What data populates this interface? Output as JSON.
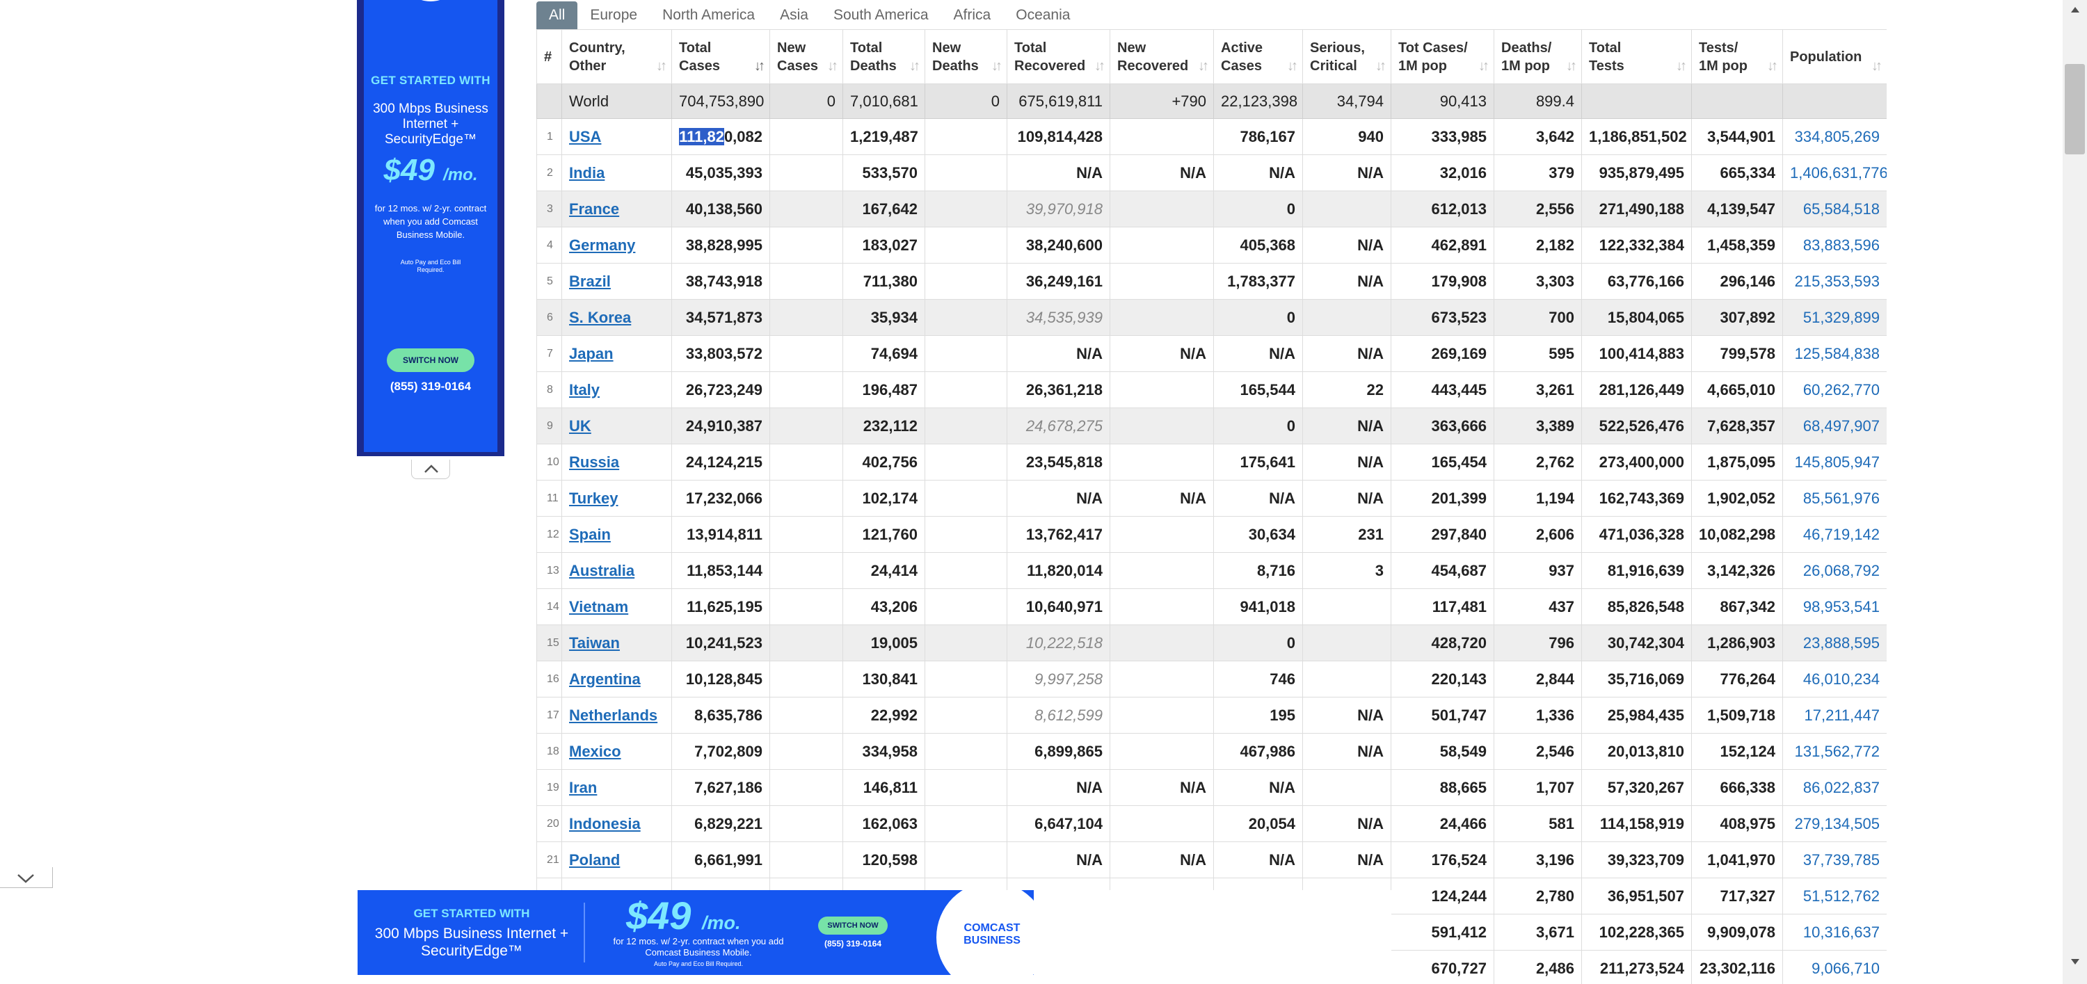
{
  "side_ad": {
    "get_started": "GET STARTED WITH",
    "speed": "300 Mbps Business Internet + SecurityEdge™",
    "price": "$49",
    "price_unit": "/mo.",
    "terms": "for 12 mos. w/ 2-yr. contract when you add Comcast Business Mobile.",
    "fine_print": "Auto Pay and Eco Bill Required.",
    "button": "SWITCH NOW",
    "phone": "(855) 319-0164"
  },
  "tabs": [
    "All",
    "Europe",
    "North America",
    "Asia",
    "South America",
    "Africa",
    "Oceania"
  ],
  "headers": [
    {
      "line1": "#",
      "line2": ""
    },
    {
      "line1": "Country,",
      "line2": "Other"
    },
    {
      "line1": "Total",
      "line2": "Cases"
    },
    {
      "line1": "New",
      "line2": "Cases"
    },
    {
      "line1": "Total",
      "line2": "Deaths"
    },
    {
      "line1": "New",
      "line2": "Deaths"
    },
    {
      "line1": "Total",
      "line2": "Recovered"
    },
    {
      "line1": "New",
      "line2": "Recovered"
    },
    {
      "line1": "Active",
      "line2": "Cases"
    },
    {
      "line1": "Serious,",
      "line2": "Critical"
    },
    {
      "line1": "Tot Cases/",
      "line2": "1M pop"
    },
    {
      "line1": "Deaths/",
      "line2": "1M pop"
    },
    {
      "line1": "Total",
      "line2": "Tests"
    },
    {
      "line1": "Tests/",
      "line2": "1M pop"
    },
    {
      "line1": "Population",
      "line2": ""
    }
  ],
  "world_row": {
    "country": "World",
    "total_cases": "704,753,890",
    "new_cases": "0",
    "total_deaths": "7,010,681",
    "new_deaths": "0",
    "total_recovered": "675,619,811",
    "new_recovered": "+790",
    "active_cases": "22,123,398",
    "serious": "34,794",
    "cases_per_1m": "90,413",
    "deaths_per_1m": "899.4",
    "total_tests": "",
    "tests_per_1m": "",
    "population": ""
  },
  "rows": [
    {
      "n": "1",
      "country": "USA",
      "total_cases": "111,820,082",
      "new_cases": "",
      "total_deaths": "1,219,487",
      "new_deaths": "",
      "total_recovered": "109,814,428",
      "new_recovered": "",
      "active_cases": "786,167",
      "serious": "940",
      "cases_per_1m": "333,985",
      "deaths_per_1m": "3,642",
      "total_tests": "1,186,851,502",
      "tests_per_1m": "3,544,901",
      "population": "334,805,269"
    },
    {
      "n": "2",
      "country": "India",
      "total_cases": "45,035,393",
      "new_cases": "",
      "total_deaths": "533,570",
      "new_deaths": "",
      "total_recovered": "N/A",
      "new_recovered": "N/A",
      "active_cases": "N/A",
      "serious": "N/A",
      "cases_per_1m": "32,016",
      "deaths_per_1m": "379",
      "total_tests": "935,879,495",
      "tests_per_1m": "665,334",
      "population": "1,406,631,776"
    },
    {
      "n": "3",
      "country": "France",
      "total_cases": "40,138,560",
      "new_cases": "",
      "total_deaths": "167,642",
      "new_deaths": "",
      "total_recovered": "39,970,918",
      "new_recovered": "",
      "active_cases": "0",
      "serious": "",
      "cases_per_1m": "612,013",
      "deaths_per_1m": "2,556",
      "total_tests": "271,490,188",
      "tests_per_1m": "4,139,547",
      "population": "65,584,518"
    },
    {
      "n": "4",
      "country": "Germany",
      "total_cases": "38,828,995",
      "new_cases": "",
      "total_deaths": "183,027",
      "new_deaths": "",
      "total_recovered": "38,240,600",
      "new_recovered": "",
      "active_cases": "405,368",
      "serious": "N/A",
      "cases_per_1m": "462,891",
      "deaths_per_1m": "2,182",
      "total_tests": "122,332,384",
      "tests_per_1m": "1,458,359",
      "population": "83,883,596"
    },
    {
      "n": "5",
      "country": "Brazil",
      "total_cases": "38,743,918",
      "new_cases": "",
      "total_deaths": "711,380",
      "new_deaths": "",
      "total_recovered": "36,249,161",
      "new_recovered": "",
      "active_cases": "1,783,377",
      "serious": "N/A",
      "cases_per_1m": "179,908",
      "deaths_per_1m": "3,303",
      "total_tests": "63,776,166",
      "tests_per_1m": "296,146",
      "population": "215,353,593"
    },
    {
      "n": "6",
      "country": "S. Korea",
      "total_cases": "34,571,873",
      "new_cases": "",
      "total_deaths": "35,934",
      "new_deaths": "",
      "total_recovered": "34,535,939",
      "new_recovered": "",
      "active_cases": "0",
      "serious": "",
      "cases_per_1m": "673,523",
      "deaths_per_1m": "700",
      "total_tests": "15,804,065",
      "tests_per_1m": "307,892",
      "population": "51,329,899"
    },
    {
      "n": "7",
      "country": "Japan",
      "total_cases": "33,803,572",
      "new_cases": "",
      "total_deaths": "74,694",
      "new_deaths": "",
      "total_recovered": "N/A",
      "new_recovered": "N/A",
      "active_cases": "N/A",
      "serious": "N/A",
      "cases_per_1m": "269,169",
      "deaths_per_1m": "595",
      "total_tests": "100,414,883",
      "tests_per_1m": "799,578",
      "population": "125,584,838"
    },
    {
      "n": "8",
      "country": "Italy",
      "total_cases": "26,723,249",
      "new_cases": "",
      "total_deaths": "196,487",
      "new_deaths": "",
      "total_recovered": "26,361,218",
      "new_recovered": "",
      "active_cases": "165,544",
      "serious": "22",
      "cases_per_1m": "443,445",
      "deaths_per_1m": "3,261",
      "total_tests": "281,126,449",
      "tests_per_1m": "4,665,010",
      "population": "60,262,770"
    },
    {
      "n": "9",
      "country": "UK",
      "total_cases": "24,910,387",
      "new_cases": "",
      "total_deaths": "232,112",
      "new_deaths": "",
      "total_recovered": "24,678,275",
      "new_recovered": "",
      "active_cases": "0",
      "serious": "N/A",
      "cases_per_1m": "363,666",
      "deaths_per_1m": "3,389",
      "total_tests": "522,526,476",
      "tests_per_1m": "7,628,357",
      "population": "68,497,907"
    },
    {
      "n": "10",
      "country": "Russia",
      "total_cases": "24,124,215",
      "new_cases": "",
      "total_deaths": "402,756",
      "new_deaths": "",
      "total_recovered": "23,545,818",
      "new_recovered": "",
      "active_cases": "175,641",
      "serious": "N/A",
      "cases_per_1m": "165,454",
      "deaths_per_1m": "2,762",
      "total_tests": "273,400,000",
      "tests_per_1m": "1,875,095",
      "population": "145,805,947"
    },
    {
      "n": "11",
      "country": "Turkey",
      "total_cases": "17,232,066",
      "new_cases": "",
      "total_deaths": "102,174",
      "new_deaths": "",
      "total_recovered": "N/A",
      "new_recovered": "N/A",
      "active_cases": "N/A",
      "serious": "N/A",
      "cases_per_1m": "201,399",
      "deaths_per_1m": "1,194",
      "total_tests": "162,743,369",
      "tests_per_1m": "1,902,052",
      "population": "85,561,976"
    },
    {
      "n": "12",
      "country": "Spain",
      "total_cases": "13,914,811",
      "new_cases": "",
      "total_deaths": "121,760",
      "new_deaths": "",
      "total_recovered": "13,762,417",
      "new_recovered": "",
      "active_cases": "30,634",
      "serious": "231",
      "cases_per_1m": "297,840",
      "deaths_per_1m": "2,606",
      "total_tests": "471,036,328",
      "tests_per_1m": "10,082,298",
      "population": "46,719,142"
    },
    {
      "n": "13",
      "country": "Australia",
      "total_cases": "11,853,144",
      "new_cases": "",
      "total_deaths": "24,414",
      "new_deaths": "",
      "total_recovered": "11,820,014",
      "new_recovered": "",
      "active_cases": "8,716",
      "serious": "3",
      "cases_per_1m": "454,687",
      "deaths_per_1m": "937",
      "total_tests": "81,916,639",
      "tests_per_1m": "3,142,326",
      "population": "26,068,792"
    },
    {
      "n": "14",
      "country": "Vietnam",
      "total_cases": "11,625,195",
      "new_cases": "",
      "total_deaths": "43,206",
      "new_deaths": "",
      "total_recovered": "10,640,971",
      "new_recovered": "",
      "active_cases": "941,018",
      "serious": "",
      "cases_per_1m": "117,481",
      "deaths_per_1m": "437",
      "total_tests": "85,826,548",
      "tests_per_1m": "867,342",
      "population": "98,953,541"
    },
    {
      "n": "15",
      "country": "Taiwan",
      "total_cases": "10,241,523",
      "new_cases": "",
      "total_deaths": "19,005",
      "new_deaths": "",
      "total_recovered": "10,222,518",
      "new_recovered": "",
      "active_cases": "0",
      "serious": "",
      "cases_per_1m": "428,720",
      "deaths_per_1m": "796",
      "total_tests": "30,742,304",
      "tests_per_1m": "1,286,903",
      "population": "23,888,595"
    },
    {
      "n": "16",
      "country": "Argentina",
      "total_cases": "10,128,845",
      "new_cases": "",
      "total_deaths": "130,841",
      "new_deaths": "",
      "total_recovered": "9,997,258",
      "new_recovered": "",
      "active_cases": "746",
      "serious": "",
      "cases_per_1m": "220,143",
      "deaths_per_1m": "2,844",
      "total_tests": "35,716,069",
      "tests_per_1m": "776,264",
      "population": "46,010,234"
    },
    {
      "n": "17",
      "country": "Netherlands",
      "total_cases": "8,635,786",
      "new_cases": "",
      "total_deaths": "22,992",
      "new_deaths": "",
      "total_recovered": "8,612,599",
      "new_recovered": "",
      "active_cases": "195",
      "serious": "N/A",
      "cases_per_1m": "501,747",
      "deaths_per_1m": "1,336",
      "total_tests": "25,984,435",
      "tests_per_1m": "1,509,718",
      "population": "17,211,447"
    },
    {
      "n": "18",
      "country": "Mexico",
      "total_cases": "7,702,809",
      "new_cases": "",
      "total_deaths": "334,958",
      "new_deaths": "",
      "total_recovered": "6,899,865",
      "new_recovered": "",
      "active_cases": "467,986",
      "serious": "N/A",
      "cases_per_1m": "58,549",
      "deaths_per_1m": "2,546",
      "total_tests": "20,013,810",
      "tests_per_1m": "152,124",
      "population": "131,562,772"
    },
    {
      "n": "19",
      "country": "Iran",
      "total_cases": "7,627,186",
      "new_cases": "",
      "total_deaths": "146,811",
      "new_deaths": "",
      "total_recovered": "N/A",
      "new_recovered": "N/A",
      "active_cases": "N/A",
      "serious": "",
      "cases_per_1m": "88,665",
      "deaths_per_1m": "1,707",
      "total_tests": "57,320,267",
      "tests_per_1m": "666,338",
      "population": "86,022,837"
    },
    {
      "n": "20",
      "country": "Indonesia",
      "total_cases": "6,829,221",
      "new_cases": "",
      "total_deaths": "162,063",
      "new_deaths": "",
      "total_recovered": "6,647,104",
      "new_recovered": "",
      "active_cases": "20,054",
      "serious": "N/A",
      "cases_per_1m": "24,466",
      "deaths_per_1m": "581",
      "total_tests": "114,158,919",
      "tests_per_1m": "408,975",
      "population": "279,134,505"
    },
    {
      "n": "21",
      "country": "Poland",
      "total_cases": "6,661,991",
      "new_cases": "",
      "total_deaths": "120,598",
      "new_deaths": "",
      "total_recovered": "N/A",
      "new_recovered": "N/A",
      "active_cases": "N/A",
      "serious": "N/A",
      "cases_per_1m": "176,524",
      "deaths_per_1m": "3,196",
      "total_tests": "39,323,709",
      "tests_per_1m": "1,041,970",
      "population": "37,739,785"
    },
    {
      "n": "",
      "country": "",
      "total_cases": "",
      "new_cases": "",
      "total_deaths": "",
      "new_deaths": "",
      "total_recovered": "",
      "new_recovered": "",
      "active_cases": "",
      "serious": "",
      "cases_per_1m": "124,244",
      "deaths_per_1m": "2,780",
      "total_tests": "36,951,507",
      "tests_per_1m": "717,327",
      "population": "51,512,762"
    },
    {
      "n": "",
      "country": "",
      "total_cases": "",
      "new_cases": "",
      "total_deaths": "",
      "new_deaths": "",
      "total_recovered": "",
      "new_recovered": "",
      "active_cases": "",
      "serious": "",
      "cases_per_1m": "591,412",
      "deaths_per_1m": "3,671",
      "total_tests": "102,228,365",
      "tests_per_1m": "9,909,078",
      "population": "10,316,637"
    },
    {
      "n": "",
      "country": "",
      "total_cases": "",
      "new_cases": "",
      "total_deaths": "",
      "new_deaths": "",
      "total_recovered": "",
      "new_recovered": "",
      "active_cases": "",
      "serious": "",
      "cases_per_1m": "670,727",
      "deaths_per_1m": "2,486",
      "total_tests": "211,273,524",
      "tests_per_1m": "23,302,116",
      "population": "9,066,710"
    }
  ],
  "grey_rows": [
    3,
    6,
    9,
    15
  ],
  "italic_recovered_rows": [
    3,
    6,
    9,
    15,
    16,
    17
  ],
  "selection": {
    "row": 1,
    "highlighted_text": "111,82",
    "rest_text": "0,082"
  },
  "bottom_ad": {
    "get_started": "GET STARTED WITH",
    "speed": "300 Mbps Business Internet + SecurityEdge™",
    "price": "$49",
    "price_unit": "/mo.",
    "terms": "for 12 mos. w/ 2-yr. contract when you add Comcast Business Mobile.",
    "fine_print": "Auto Pay and Eco Bill Required.",
    "button": "SWITCH NOW",
    "phone": "(855) 319-0164",
    "brand_line1": "COMCAST",
    "brand_line2": "BUSINESS"
  },
  "colors": {
    "link": "#1e6bb8",
    "tab_active": "#6e8290",
    "ad_blue": "#1556f0",
    "ad_cyan": "#7de8ff",
    "ad_green": "#77e2a8",
    "selection": "#2d5ec9"
  },
  "icons": {
    "side_collapse": "chevron-up-icon",
    "bottom_collapse": "chevron-down-icon",
    "ad_choices": "ad-choices-icon",
    "ad_close": "close-icon",
    "sort": "sort-arrows-icon"
  }
}
